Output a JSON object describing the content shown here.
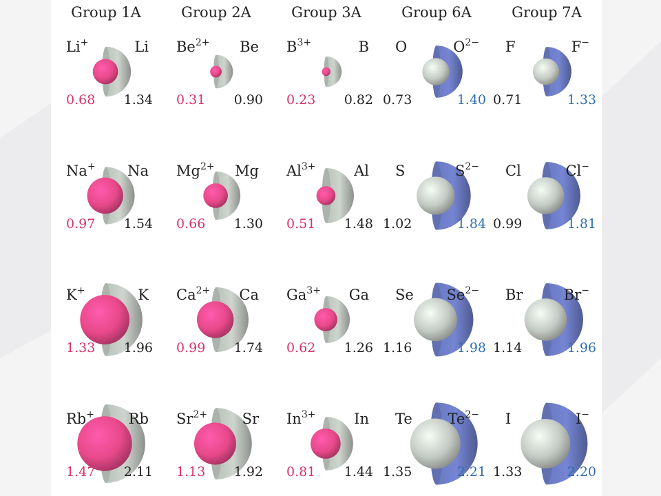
{
  "groups": [
    {
      "title": "Group 1A",
      "kind": "cation",
      "elements": [
        {
          "neutral": "Li",
          "ion_symbol": "Li",
          "ion_charge": "+",
          "ion_radius": "0.68",
          "atom_radius": "1.34"
        },
        {
          "neutral": "Na",
          "ion_symbol": "Na",
          "ion_charge": "+",
          "ion_radius": "0.97",
          "atom_radius": "1.54"
        },
        {
          "neutral": "K",
          "ion_symbol": "K",
          "ion_charge": "+",
          "ion_radius": "1.33",
          "atom_radius": "1.96"
        },
        {
          "neutral": "Rb",
          "ion_symbol": "Rb",
          "ion_charge": "+",
          "ion_radius": "1.47",
          "atom_radius": "2.11"
        }
      ]
    },
    {
      "title": "Group 2A",
      "kind": "cation",
      "elements": [
        {
          "neutral": "Be",
          "ion_symbol": "Be",
          "ion_charge": "2+",
          "ion_radius": "0.31",
          "atom_radius": "0.90"
        },
        {
          "neutral": "Mg",
          "ion_symbol": "Mg",
          "ion_charge": "2+",
          "ion_radius": "0.66",
          "atom_radius": "1.30"
        },
        {
          "neutral": "Ca",
          "ion_symbol": "Ca",
          "ion_charge": "2+",
          "ion_radius": "0.99",
          "atom_radius": "1.74"
        },
        {
          "neutral": "Sr",
          "ion_symbol": "Sr",
          "ion_charge": "2+",
          "ion_radius": "1.13",
          "atom_radius": "1.92"
        }
      ]
    },
    {
      "title": "Group 3A",
      "kind": "cation",
      "elements": [
        {
          "neutral": "B",
          "ion_symbol": "B",
          "ion_charge": "3+",
          "ion_radius": "0.23",
          "atom_radius": "0.82"
        },
        {
          "neutral": "Al",
          "ion_symbol": "Al",
          "ion_charge": "3+",
          "ion_radius": "0.51",
          "atom_radius": "1.48"
        },
        {
          "neutral": "Ga",
          "ion_symbol": "Ga",
          "ion_charge": "3+",
          "ion_radius": "0.62",
          "atom_radius": "1.26"
        },
        {
          "neutral": "In",
          "ion_symbol": "In",
          "ion_charge": "3+",
          "ion_radius": "0.81",
          "atom_radius": "1.44"
        }
      ]
    },
    {
      "title": "Group 6A",
      "kind": "anion",
      "elements": [
        {
          "neutral": "O",
          "ion_symbol": "O",
          "ion_charge": "2−",
          "ion_radius": "1.40",
          "atom_radius": "0.73"
        },
        {
          "neutral": "S",
          "ion_symbol": "S",
          "ion_charge": "2−",
          "ion_radius": "1.84",
          "atom_radius": "1.02"
        },
        {
          "neutral": "Se",
          "ion_symbol": "Se",
          "ion_charge": "2−",
          "ion_radius": "1.98",
          "atom_radius": "1.16"
        },
        {
          "neutral": "Te",
          "ion_symbol": "Te",
          "ion_charge": "2−",
          "ion_radius": "2.21",
          "atom_radius": "1.35"
        }
      ]
    },
    {
      "title": "Group 7A",
      "kind": "anion",
      "elements": [
        {
          "neutral": "F",
          "ion_symbol": "F",
          "ion_charge": "−",
          "ion_radius": "1.33",
          "atom_radius": "0.71"
        },
        {
          "neutral": "Cl",
          "ion_symbol": "Cl",
          "ion_charge": "−",
          "ion_radius": "1.81",
          "atom_radius": "0.99"
        },
        {
          "neutral": "Br",
          "ion_symbol": "Br",
          "ion_charge": "−",
          "ion_radius": "1.96",
          "atom_radius": "1.14"
        },
        {
          "neutral": "I",
          "ion_symbol": "I",
          "ion_charge": "−",
          "ion_radius": "2.20",
          "atom_radius": "1.33"
        }
      ]
    }
  ],
  "colors": {
    "cation_sphere": "#e8498a",
    "cation_text": "#d6336c",
    "neutral_sphere": "#c4cac4",
    "anion_sphere": "#6f7fca",
    "anion_text": "#2f6fb0",
    "neutral_text": "#222222"
  }
}
